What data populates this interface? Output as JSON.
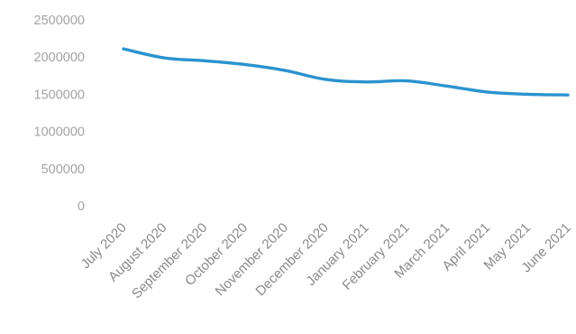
{
  "chart_data": {
    "type": "line",
    "title": "",
    "xlabel": "",
    "ylabel": "",
    "categories": [
      "July 2020",
      "August 2020",
      "September 2020",
      "October 2020",
      "November 2020",
      "December 2020",
      "January 2021",
      "February 2021",
      "March 2021",
      "April 2021",
      "May 2021",
      "June 2021"
    ],
    "y_ticks": [
      "0",
      "500000",
      "1000000",
      "1500000",
      "2000000",
      "2500000"
    ],
    "ylim": [
      0,
      2500000
    ],
    "grid": false,
    "legend": "none",
    "series": [
      {
        "color": "#2b93cf",
        "values": [
          2110000,
          1990000,
          1950000,
          1900000,
          1820000,
          1700000,
          1665000,
          1680000,
          1610000,
          1530000,
          1500000,
          1490000
        ]
      }
    ]
  }
}
